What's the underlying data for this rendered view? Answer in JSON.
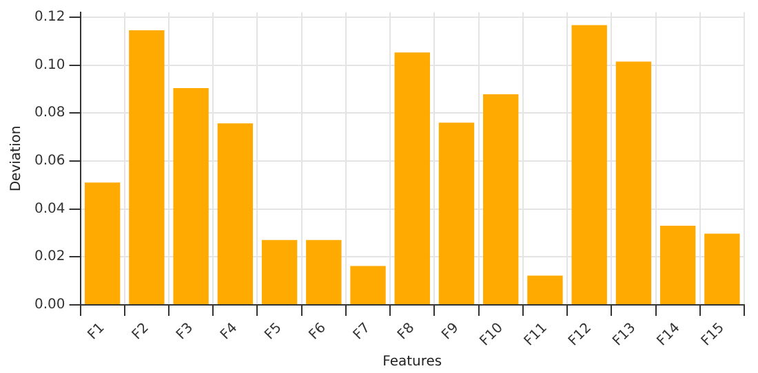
{
  "chart_data": {
    "type": "bar",
    "xlabel": "Features",
    "ylabel": "Deviation",
    "categories": [
      "F1",
      "F2",
      "F3",
      "F4",
      "F5",
      "F6",
      "F7",
      "F8",
      "F9",
      "F10",
      "F11",
      "F12",
      "F13",
      "F14",
      "F15"
    ],
    "values": [
      0.051,
      0.1145,
      0.0904,
      0.0757,
      0.027,
      0.027,
      0.0162,
      0.1053,
      0.076,
      0.0878,
      0.0122,
      0.1167,
      0.1015,
      0.033,
      0.0297
    ],
    "color": "#ffaa00",
    "ylim": [
      0,
      0.122
    ],
    "yticks": [
      {
        "value": 0,
        "label": "0.00"
      },
      {
        "value": 0.02,
        "label": "0.02"
      },
      {
        "value": 0.04,
        "label": "0.04"
      },
      {
        "value": 0.06,
        "label": "0.06"
      },
      {
        "value": 0.08,
        "label": "0.08"
      },
      {
        "value": 0.1,
        "label": "0.10"
      },
      {
        "value": 0.12,
        "label": "0.12"
      }
    ],
    "grid": true
  }
}
